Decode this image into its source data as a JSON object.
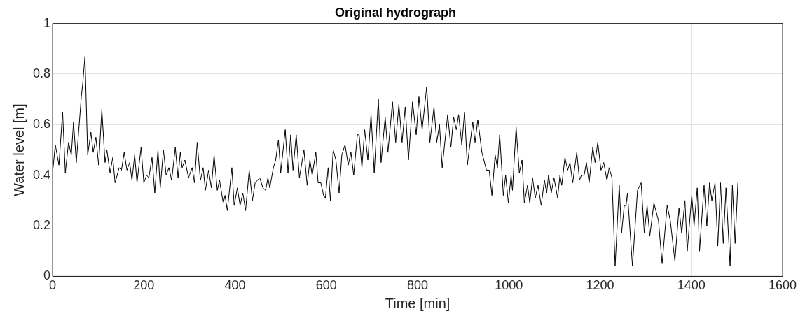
{
  "chart_data": {
    "type": "line",
    "title": "Original hydrograph",
    "xlabel": "Time [min]",
    "ylabel": "Water level [m]",
    "x": [
      0,
      6,
      14,
      22,
      28,
      35,
      41,
      46,
      52,
      63,
      66,
      71,
      77,
      84,
      89,
      95,
      101,
      108,
      115,
      119,
      126,
      132,
      137,
      146,
      151,
      157,
      163,
      169,
      174,
      180,
      185,
      194,
      200,
      206,
      211,
      218,
      224,
      231,
      236,
      243,
      249,
      255,
      261,
      269,
      275,
      280,
      284,
      290,
      298,
      306,
      311,
      317,
      324,
      330,
      335,
      342,
      348,
      354,
      361,
      366,
      374,
      378,
      383,
      393,
      398,
      405,
      411,
      417,
      423,
      431,
      438,
      444,
      454,
      461,
      467,
      472,
      476,
      484,
      489,
      495,
      500,
      510,
      516,
      522,
      527,
      534,
      541,
      551,
      558,
      564,
      569,
      577,
      582,
      588,
      594,
      598,
      604,
      609,
      615,
      621,
      628,
      634,
      641,
      648,
      654,
      660,
      668,
      672,
      678,
      684,
      691,
      698,
      705,
      714,
      720,
      729,
      735,
      745,
      752,
      759,
      766,
      773,
      780,
      789,
      797,
      803,
      810,
      820,
      827,
      836,
      842,
      848,
      854,
      866,
      873,
      879,
      885,
      890,
      897,
      903,
      909,
      921,
      926,
      932,
      941,
      951,
      957,
      963,
      970,
      975,
      980,
      988,
      993,
      999,
      1005,
      1008,
      1016,
      1023,
      1029,
      1034,
      1041,
      1046,
      1052,
      1058,
      1064,
      1071,
      1078,
      1083,
      1087,
      1093,
      1099,
      1107,
      1112,
      1116,
      1123,
      1129,
      1134,
      1140,
      1149,
      1155,
      1159,
      1165,
      1170,
      1176,
      1184,
      1189,
      1195,
      1202,
      1208,
      1215,
      1220,
      1226,
      1233,
      1242,
      1247,
      1253,
      1257,
      1260,
      1271,
      1282,
      1290,
      1297,
      1303,
      1309,
      1318,
      1328,
      1336,
      1347,
      1354,
      1364,
      1373,
      1379,
      1386,
      1391,
      1401,
      1406,
      1413,
      1418,
      1428,
      1434,
      1440,
      1445,
      1452,
      1458,
      1464,
      1470,
      1476,
      1485,
      1490,
      1496,
      1502
    ],
    "series": [
      {
        "color": "#000000",
        "values": [
          0.41,
          0.52,
          0.44,
          0.65,
          0.41,
          0.53,
          0.48,
          0.61,
          0.45,
          0.71,
          0.76,
          0.87,
          0.48,
          0.57,
          0.49,
          0.55,
          0.44,
          0.66,
          0.45,
          0.5,
          0.41,
          0.47,
          0.37,
          0.43,
          0.42,
          0.49,
          0.42,
          0.45,
          0.38,
          0.48,
          0.37,
          0.51,
          0.37,
          0.4,
          0.39,
          0.47,
          0.33,
          0.5,
          0.35,
          0.5,
          0.4,
          0.43,
          0.38,
          0.51,
          0.39,
          0.49,
          0.43,
          0.46,
          0.39,
          0.43,
          0.37,
          0.53,
          0.38,
          0.43,
          0.34,
          0.42,
          0.35,
          0.48,
          0.34,
          0.38,
          0.29,
          0.32,
          0.26,
          0.43,
          0.28,
          0.35,
          0.28,
          0.33,
          0.26,
          0.42,
          0.3,
          0.37,
          0.39,
          0.35,
          0.34,
          0.39,
          0.35,
          0.43,
          0.46,
          0.54,
          0.41,
          0.58,
          0.41,
          0.56,
          0.42,
          0.56,
          0.39,
          0.5,
          0.36,
          0.46,
          0.4,
          0.49,
          0.37,
          0.37,
          0.32,
          0.31,
          0.43,
          0.3,
          0.5,
          0.46,
          0.33,
          0.48,
          0.52,
          0.44,
          0.49,
          0.4,
          0.56,
          0.56,
          0.43,
          0.58,
          0.46,
          0.64,
          0.41,
          0.7,
          0.45,
          0.63,
          0.49,
          0.69,
          0.53,
          0.68,
          0.53,
          0.67,
          0.46,
          0.69,
          0.56,
          0.71,
          0.58,
          0.75,
          0.53,
          0.67,
          0.53,
          0.6,
          0.43,
          0.64,
          0.51,
          0.63,
          0.58,
          0.64,
          0.52,
          0.65,
          0.44,
          0.61,
          0.53,
          0.62,
          0.49,
          0.42,
          0.42,
          0.32,
          0.48,
          0.43,
          0.56,
          0.32,
          0.4,
          0.29,
          0.4,
          0.34,
          0.59,
          0.41,
          0.46,
          0.29,
          0.36,
          0.29,
          0.39,
          0.31,
          0.36,
          0.28,
          0.38,
          0.33,
          0.4,
          0.33,
          0.39,
          0.31,
          0.4,
          0.36,
          0.47,
          0.42,
          0.45,
          0.37,
          0.49,
          0.38,
          0.4,
          0.4,
          0.45,
          0.37,
          0.51,
          0.45,
          0.53,
          0.42,
          0.45,
          0.38,
          0.43,
          0.39,
          0.04,
          0.36,
          0.17,
          0.28,
          0.28,
          0.33,
          0.04,
          0.34,
          0.37,
          0.17,
          0.28,
          0.16,
          0.29,
          0.22,
          0.05,
          0.28,
          0.22,
          0.06,
          0.27,
          0.17,
          0.3,
          0.1,
          0.32,
          0.2,
          0.35,
          0.1,
          0.36,
          0.2,
          0.37,
          0.3,
          0.37,
          0.12,
          0.37,
          0.13,
          0.35,
          0.04,
          0.36,
          0.13,
          0.37
        ]
      }
    ],
    "xlim": [
      0,
      1600
    ],
    "xticks": [
      0,
      200,
      400,
      600,
      800,
      1000,
      1200,
      1400,
      1600
    ],
    "ylim": [
      0,
      1
    ],
    "yticks": [
      0,
      0.2,
      0.4,
      0.6,
      0.8,
      1
    ],
    "grid": true,
    "legend": false,
    "marker": "none",
    "line_style": "solid"
  }
}
